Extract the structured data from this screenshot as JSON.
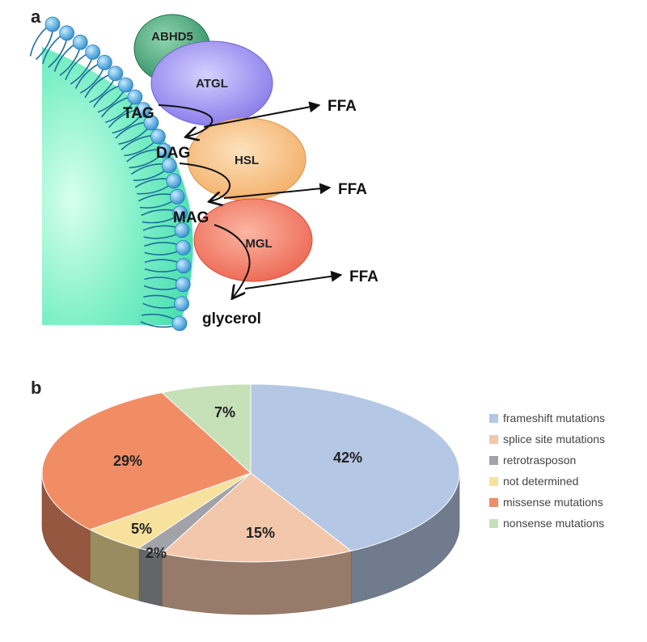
{
  "panel_a": {
    "letter": "a",
    "enzymes": {
      "abhd5": "ABHD5",
      "atgl": "ATGL",
      "hsl": "HSL",
      "mgl": "MGL"
    },
    "lipids": {
      "tag": "TAG",
      "dag": "DAG",
      "mag": "MAG",
      "glycerol": "glycerol"
    },
    "products": [
      "FFA",
      "FFA",
      "FFA"
    ],
    "colors": {
      "droplet": "#5ce8bd",
      "phospholipid_head": "#4aa3dc",
      "tail": "#1f6e99",
      "abhd5": "#2f9a6a",
      "atgl": "#8f82f0",
      "hsl": "#f6b86e",
      "mgl": "#f26b55"
    }
  },
  "panel_b": {
    "letter": "b",
    "chart_data": {
      "type": "pie",
      "slices": [
        {
          "label": "frameshift mutations",
          "value": 42,
          "display": "42%",
          "color": "#b4c7e4"
        },
        {
          "label": "splice site mutations",
          "value": 15,
          "display": "15%",
          "color": "#f3c7ab"
        },
        {
          "label": "retrotrasposon",
          "value": 2,
          "display": "2%",
          "color": "#a2a3a8"
        },
        {
          "label": "not determined",
          "value": 5,
          "display": "5%",
          "color": "#f7e19c"
        },
        {
          "label": "missense mutations",
          "value": 29,
          "display": "29%",
          "color": "#f18d65"
        },
        {
          "label": "nonsense mutations",
          "value": 7,
          "display": "7%",
          "color": "#c6e0b8"
        }
      ],
      "legend": "right"
    }
  }
}
